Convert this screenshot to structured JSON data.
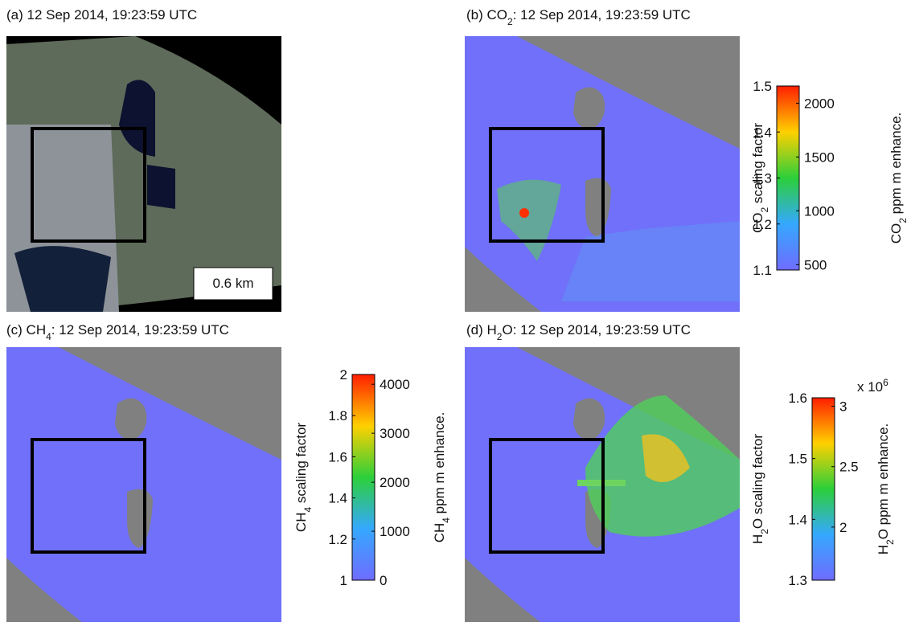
{
  "panels": [
    {
      "title": {
        "pre": "(a) 12 Sep 2014, 19:23:59 UTC"
      },
      "scale_bar": "0.6 km"
    },
    {
      "title": {
        "pre": "(b) CO",
        "sub": "2",
        "post": ": 12 Sep 2014, 19:23:59 UTC"
      },
      "colorbar": {
        "left_label": {
          "pre": "CO",
          "sub": "2",
          "post": " scaling factor"
        },
        "left_lim": [
          1.1,
          1.5
        ],
        "left_ticks": [
          1.1,
          1.2,
          1.3,
          1.4,
          1.5
        ],
        "right_label": {
          "pre": "CO",
          "sub": "2",
          "post": " ppm m enhance."
        },
        "right_lim": [
          450,
          2160
        ],
        "right_ticks": [
          500,
          1000,
          1500,
          2000
        ]
      }
    },
    {
      "title": {
        "pre": "(c) CH",
        "sub": "4",
        "post": ": 12 Sep 2014, 19:23:59 UTC"
      },
      "colorbar": {
        "left_label": {
          "pre": "CH",
          "sub": "4",
          "post": " scaling factor"
        },
        "left_lim": [
          1,
          2
        ],
        "left_ticks": [
          1,
          1.2,
          1.4,
          1.6,
          1.8,
          2
        ],
        "right_label": {
          "pre": "CH",
          "sub": "4",
          "post": " ppm m enhance."
        },
        "right_lim": [
          0,
          4200
        ],
        "right_ticks": [
          0,
          1000,
          2000,
          3000,
          4000
        ]
      }
    },
    {
      "title": {
        "pre": "(d) H",
        "sub": "2",
        "post": "O: 12 Sep 2014, 19:23:59 UTC"
      },
      "colorbar": {
        "left_label": {
          "pre": "H",
          "sub": "2",
          "post": "O scaling factor"
        },
        "left_lim": [
          1.3,
          1.6
        ],
        "left_ticks": [
          1.3,
          1.4,
          1.5,
          1.6
        ],
        "right_label": {
          "pre": "H",
          "sub": "2",
          "post": "O ppm m enhance."
        },
        "right_lim": [
          1.56,
          3.07
        ],
        "right_ticks": [
          2,
          2.5,
          3
        ],
        "right_exponent": {
          "pre": "x 10",
          "sup": "6"
        }
      }
    }
  ]
}
